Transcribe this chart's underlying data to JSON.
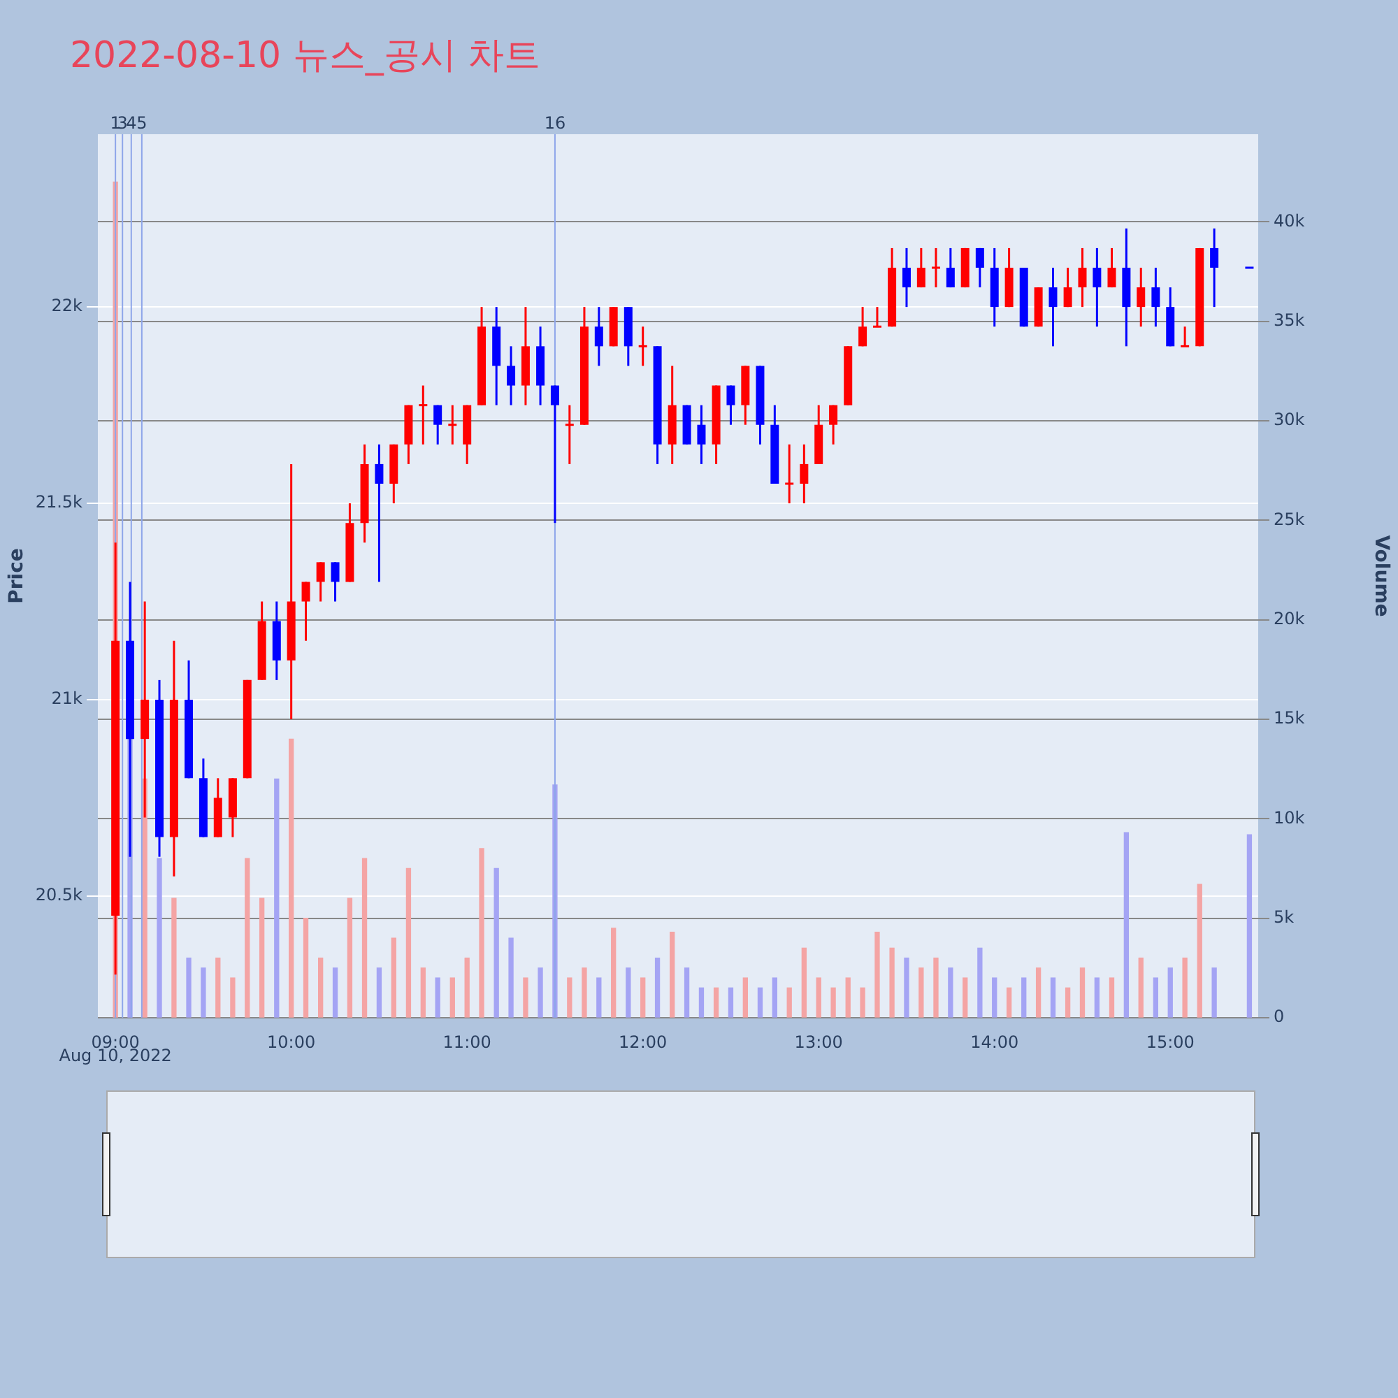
{
  "chart_data": {
    "type": "candlestick",
    "title": "2022-08-10 뉴스_공시 차트",
    "ylabel": "Price",
    "y2label": "Volume",
    "annotations": [
      "Aug 10, 2022",
      "1",
      "3",
      "4",
      "5",
      "16"
    ],
    "x": [
      9,
      9.083,
      9.167,
      9.25,
      9.333,
      9.417,
      9.5,
      9.583,
      9.667,
      9.75,
      9.833,
      9.917,
      10,
      10.083,
      10.167,
      10.25,
      10.333,
      10.417,
      10.5,
      10.583,
      10.667,
      10.75,
      10.833,
      10.917,
      11,
      11.083,
      11.167,
      11.25,
      11.333,
      11.417,
      11.5,
      11.583,
      11.667,
      11.75,
      11.833,
      11.917,
      12,
      12.083,
      12.167,
      12.25,
      12.333,
      12.417,
      12.5,
      12.583,
      12.667,
      12.75,
      12.833,
      12.917,
      13,
      13.083,
      13.167,
      13.25,
      13.333,
      13.417,
      13.5,
      13.583,
      13.667,
      13.75,
      13.833,
      13.917,
      14,
      14.083,
      14.167,
      14.25,
      14.333,
      14.417,
      14.5,
      14.583,
      14.667,
      14.75,
      14.833,
      14.917,
      15,
      15.083,
      15.167,
      15.25,
      15.45
    ],
    "series": [
      {
        "type": "candlestick",
        "ohlc": [
          [
            20450,
            21400,
            20300,
            21150
          ],
          [
            21150,
            21300,
            20600,
            20900
          ],
          [
            20900,
            21250,
            20700,
            21000
          ],
          [
            21000,
            21050,
            20600,
            20650
          ],
          [
            20650,
            21150,
            20550,
            21000
          ],
          [
            21000,
            21100,
            20800,
            20800
          ],
          [
            20800,
            20850,
            20650,
            20650
          ],
          [
            20650,
            20800,
            20650,
            20750
          ],
          [
            20700,
            20800,
            20650,
            20800
          ],
          [
            20800,
            21050,
            20800,
            21050
          ],
          [
            21050,
            21250,
            21050,
            21200
          ],
          [
            21200,
            21250,
            21050,
            21100
          ],
          [
            21100,
            21600,
            20950,
            21250
          ],
          [
            21250,
            21300,
            21150,
            21300
          ],
          [
            21300,
            21350,
            21250,
            21350
          ],
          [
            21350,
            21350,
            21250,
            21300
          ],
          [
            21300,
            21500,
            21300,
            21450
          ],
          [
            21450,
            21650,
            21400,
            21600
          ],
          [
            21600,
            21650,
            21300,
            21550
          ],
          [
            21550,
            21650,
            21500,
            21650
          ],
          [
            21650,
            21750,
            21600,
            21750
          ],
          [
            21750,
            21800,
            21650,
            21750
          ],
          [
            21750,
            21750,
            21650,
            21700
          ],
          [
            21700,
            21750,
            21650,
            21700
          ],
          [
            21650,
            21750,
            21600,
            21750
          ],
          [
            21750,
            22000,
            21750,
            21950
          ],
          [
            21950,
            22000,
            21750,
            21850
          ],
          [
            21850,
            21900,
            21750,
            21800
          ],
          [
            21800,
            22000,
            21750,
            21900
          ],
          [
            21900,
            21950,
            21750,
            21800
          ],
          [
            21800,
            21800,
            21450,
            21750
          ],
          [
            21700,
            21750,
            21600,
            21700
          ],
          [
            21700,
            22000,
            21700,
            21950
          ],
          [
            21950,
            22000,
            21850,
            21900
          ],
          [
            21900,
            22000,
            21900,
            22000
          ],
          [
            22000,
            22000,
            21850,
            21900
          ],
          [
            21900,
            21950,
            21850,
            21900
          ],
          [
            21900,
            21900,
            21600,
            21650
          ],
          [
            21650,
            21850,
            21600,
            21750
          ],
          [
            21750,
            21750,
            21650,
            21650
          ],
          [
            21700,
            21750,
            21600,
            21650
          ],
          [
            21650,
            21800,
            21600,
            21800
          ],
          [
            21800,
            21800,
            21700,
            21750
          ],
          [
            21750,
            21850,
            21700,
            21850
          ],
          [
            21850,
            21850,
            21650,
            21700
          ],
          [
            21700,
            21750,
            21550,
            21550
          ],
          [
            21550,
            21650,
            21500,
            21550
          ],
          [
            21550,
            21650,
            21500,
            21600
          ],
          [
            21600,
            21750,
            21600,
            21700
          ],
          [
            21700,
            21750,
            21650,
            21750
          ],
          [
            21750,
            21900,
            21750,
            21900
          ],
          [
            21900,
            22000,
            21900,
            21950
          ],
          [
            21950,
            22000,
            21950,
            21950
          ],
          [
            21950,
            22150,
            21950,
            22100
          ],
          [
            22100,
            22150,
            22000,
            22050
          ],
          [
            22050,
            22150,
            22050,
            22100
          ],
          [
            22100,
            22150,
            22050,
            22100
          ],
          [
            22100,
            22150,
            22050,
            22050
          ],
          [
            22050,
            22150,
            22050,
            22150
          ],
          [
            22150,
            22150,
            22050,
            22100
          ],
          [
            22100,
            22150,
            21950,
            22000
          ],
          [
            22000,
            22150,
            22000,
            22100
          ],
          [
            22100,
            22100,
            21950,
            21950
          ],
          [
            21950,
            22050,
            21950,
            22050
          ],
          [
            22050,
            22100,
            21900,
            22000
          ],
          [
            22000,
            22100,
            22000,
            22050
          ],
          [
            22050,
            22150,
            22000,
            22100
          ],
          [
            22100,
            22150,
            21950,
            22050
          ],
          [
            22050,
            22150,
            22050,
            22100
          ],
          [
            22100,
            22200,
            21900,
            22000
          ],
          [
            22000,
            22100,
            21950,
            22050
          ],
          [
            22050,
            22100,
            21950,
            22000
          ],
          [
            22000,
            22050,
            21900,
            21900
          ],
          [
            21900,
            21950,
            21900,
            21900
          ],
          [
            21900,
            22150,
            21900,
            22150
          ],
          [
            22150,
            22200,
            22000,
            22100
          ],
          [
            22100,
            22100,
            22100,
            22100
          ]
        ],
        "colors": [
          "#ff0000",
          "#0000ff",
          "#ff0000",
          "#0000ff",
          "#ff0000",
          "#0000ff",
          "#0000ff",
          "#ff0000",
          "#ff0000",
          "#ff0000",
          "#ff0000",
          "#0000ff",
          "#ff0000",
          "#ff0000",
          "#ff0000",
          "#0000ff",
          "#ff0000",
          "#ff0000",
          "#0000ff",
          "#ff0000",
          "#ff0000",
          "#ff0000",
          "#0000ff",
          "#ff0000",
          "#ff0000",
          "#ff0000",
          "#0000ff",
          "#0000ff",
          "#ff0000",
          "#0000ff",
          "#0000ff",
          "#ff0000",
          "#ff0000",
          "#0000ff",
          "#ff0000",
          "#0000ff",
          "#ff0000",
          "#0000ff",
          "#ff0000",
          "#0000ff",
          "#0000ff",
          "#ff0000",
          "#0000ff",
          "#ff0000",
          "#0000ff",
          "#0000ff",
          "#ff0000",
          "#ff0000",
          "#ff0000",
          "#ff0000",
          "#ff0000",
          "#ff0000",
          "#ff0000",
          "#ff0000",
          "#0000ff",
          "#ff0000",
          "#ff0000",
          "#0000ff",
          "#ff0000",
          "#0000ff",
          "#0000ff",
          "#ff0000",
          "#0000ff",
          "#ff0000",
          "#0000ff",
          "#ff0000",
          "#ff0000",
          "#0000ff",
          "#ff0000",
          "#0000ff",
          "#ff0000",
          "#0000ff",
          "#0000ff",
          "#ff0000",
          "#ff0000",
          "#0000ff",
          "#0000ff"
        ]
      },
      {
        "type": "bar",
        "axis": "y2",
        "values": [
          42000,
          14000,
          12000,
          8000,
          6000,
          3000,
          2500,
          3000,
          2000,
          8000,
          6000,
          12000,
          14000,
          5000,
          3000,
          2500,
          6000,
          8000,
          2500,
          4000,
          7500,
          2500,
          2000,
          2000,
          3000,
          8500,
          7500,
          4000,
          2000,
          2500,
          11700,
          2000,
          2500,
          2000,
          4500,
          2500,
          2000,
          3000,
          4300,
          2500,
          1500,
          1500,
          1500,
          2000,
          1500,
          2000,
          1500,
          3500,
          2000,
          1500,
          2000,
          1500,
          4300,
          3500,
          3000,
          2500,
          3000,
          2500,
          2000,
          3500,
          2000,
          1500,
          2000,
          2500,
          2000,
          1500,
          2500,
          2000,
          2000,
          9300,
          3000,
          2000,
          2500,
          3000,
          6700,
          2500,
          9200
        ],
        "colors": [
          "#f4a4a4",
          "#a4a4f4",
          "#f4a4a4",
          "#a4a4f4",
          "#f4a4a4",
          "#a4a4f4",
          "#a4a4f4",
          "#f4a4a4",
          "#f4a4a4",
          "#f4a4a4",
          "#f4a4a4",
          "#a4a4f4",
          "#f4a4a4",
          "#f4a4a4",
          "#f4a4a4",
          "#a4a4f4",
          "#f4a4a4",
          "#f4a4a4",
          "#a4a4f4",
          "#f4a4a4",
          "#f4a4a4",
          "#f4a4a4",
          "#a4a4f4",
          "#f4a4a4",
          "#f4a4a4",
          "#f4a4a4",
          "#a4a4f4",
          "#a4a4f4",
          "#f4a4a4",
          "#a4a4f4",
          "#a4a4f4",
          "#f4a4a4",
          "#f4a4a4",
          "#a4a4f4",
          "#f4a4a4",
          "#a4a4f4",
          "#f4a4a4",
          "#a4a4f4",
          "#f4a4a4",
          "#a4a4f4",
          "#a4a4f4",
          "#f4a4a4",
          "#a4a4f4",
          "#f4a4a4",
          "#a4a4f4",
          "#a4a4f4",
          "#f4a4a4",
          "#f4a4a4",
          "#f4a4a4",
          "#f4a4a4",
          "#f4a4a4",
          "#f4a4a4",
          "#f4a4a4",
          "#f4a4a4",
          "#a4a4f4",
          "#f4a4a4",
          "#f4a4a4",
          "#a4a4f4",
          "#f4a4a4",
          "#a4a4f4",
          "#a4a4f4",
          "#f4a4a4",
          "#a4a4f4",
          "#f4a4a4",
          "#a4a4f4",
          "#f4a4a4",
          "#f4a4a4",
          "#a4a4f4",
          "#f4a4a4",
          "#a4a4f4",
          "#f4a4a4",
          "#a4a4f4",
          "#a4a4f4",
          "#f4a4a4",
          "#f4a4a4",
          "#a4a4f4",
          "#a4a4f4"
        ]
      }
    ],
    "xlim": [
      8.9,
      15.5
    ],
    "xticks": [
      {
        "value": 9,
        "label": "09:00"
      },
      {
        "value": 10,
        "label": "10:00"
      },
      {
        "value": 11,
        "label": "11:00"
      },
      {
        "value": 12,
        "label": "12:00"
      },
      {
        "value": 13,
        "label": "13:00"
      },
      {
        "value": 14,
        "label": "14:00"
      },
      {
        "value": 15,
        "label": "15:00"
      }
    ],
    "ylim": [
      20190,
      22440
    ],
    "yticks": [
      {
        "value": 20500,
        "label": "20.5k"
      },
      {
        "value": 21000,
        "label": "21k"
      },
      {
        "value": 21500,
        "label": "21.5k"
      },
      {
        "value": 22000,
        "label": "22k"
      }
    ],
    "y2lim": [
      0,
      44400
    ],
    "y2ticks": [
      0,
      {
        "value": 5000,
        "label": "5k"
      },
      {
        "value": 10000,
        "label": "10k"
      },
      {
        "value": 15000,
        "label": "15k"
      },
      {
        "value": 20000,
        "label": "20k"
      },
      {
        "value": 25000,
        "label": "25k"
      },
      {
        "value": 30000,
        "label": "30k"
      },
      {
        "value": 35000,
        "label": "35k"
      },
      {
        "value": 40000,
        "label": "40k"
      }
    ],
    "ref_lines": [
      {
        "axis": "x",
        "value": 9.0,
        "color": "#8ea6ea"
      },
      {
        "axis": "x",
        "value": 9.04,
        "color": "#8ea6ea"
      },
      {
        "axis": "x",
        "value": 9.09,
        "color": "#8ea6ea"
      },
      {
        "axis": "x",
        "value": 9.15,
        "color": "#8ea6ea"
      },
      {
        "axis": "x",
        "value": 11.5,
        "color": "#8ea6ea"
      }
    ],
    "grid": "y"
  }
}
